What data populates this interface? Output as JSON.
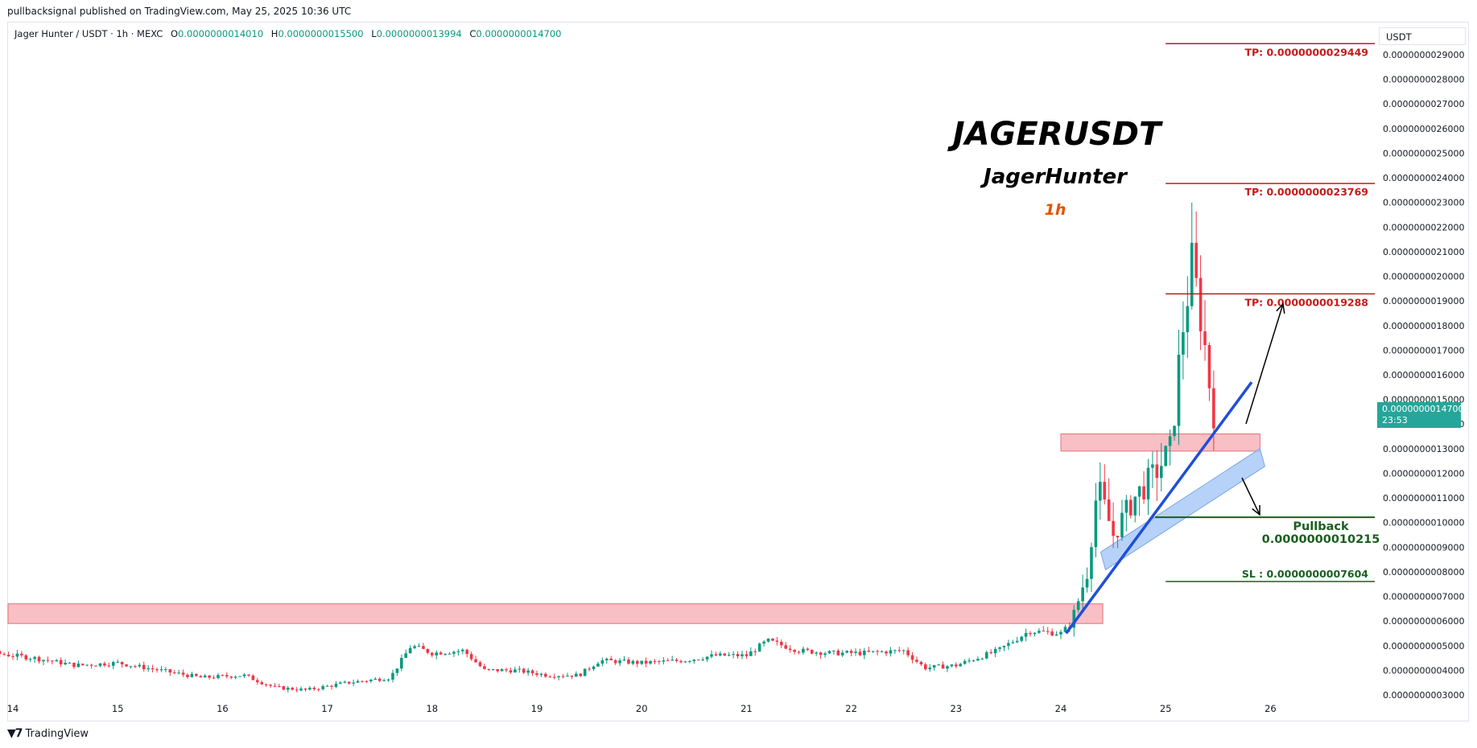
{
  "header": {
    "published": "pullbacksignal published on TradingView.com, May 25, 2025 10:36 UTC"
  },
  "legend": {
    "symbol": "Jager Hunter / USDT · 1h · MEXC",
    "open_label": "O",
    "open": "0.0000000014010",
    "high_label": "H",
    "high": "0.0000000015500",
    "low_label": "L",
    "low": "0.0000000013994",
    "close_label": "C",
    "close": "0.0000000014700"
  },
  "price_scale": {
    "unit": "USDT"
  },
  "last_price": {
    "value": "0.0000000014700",
    "countdown": "23:53"
  },
  "footer": {
    "brand": "TradingView"
  },
  "colors": {
    "up": "#089981",
    "down": "#f23645",
    "trend": "#1f4fd8",
    "zone": "#f7b8bf",
    "channel": "#9ec3f5",
    "tp": "#c41a1a",
    "sl": "#1b5e20"
  },
  "chart_data": {
    "type": "candlestick",
    "title": "JAGERUSDT",
    "subtitle": "JagerHunter",
    "timeframe": "1h",
    "ylim": [
      3e-10,
      2.9e-09
    ],
    "y_ticks": [
      "0.0000000003000",
      "0.0000000004000",
      "0.0000000005000",
      "0.0000000006000",
      "0.0000000007000",
      "0.0000000008000",
      "0.0000000009000",
      "0.0000000010000",
      "0.0000000011000",
      "0.0000000012000",
      "0.0000000013000",
      "0.0000000014000",
      "0.0000000015000",
      "0.0000000016000",
      "0.0000000017000",
      "0.0000000018000",
      "0.0000000019000",
      "0.0000000020000",
      "0.0000000021000",
      "0.0000000022000",
      "0.0000000023000",
      "0.0000000024000",
      "0.0000000025000",
      "0.0000000026000",
      "0.0000000027000",
      "0.0000000028000",
      "0.0000000029000"
    ],
    "x_ticks": [
      "14",
      "15",
      "16",
      "17",
      "18",
      "19",
      "20",
      "21",
      "22",
      "23",
      "24",
      "25",
      "26"
    ],
    "price_path": [
      [
        13.0,
        6e-10
      ],
      [
        13.4,
        5.5e-10
      ],
      [
        13.8,
        4.7e-10
      ],
      [
        14.2,
        4.5e-10
      ],
      [
        14.6,
        4.2e-10
      ],
      [
        15.0,
        4.3e-10
      ],
      [
        15.4,
        4e-10
      ],
      [
        15.8,
        3.7e-10
      ],
      [
        16.2,
        3.8e-10
      ],
      [
        16.5,
        3.3e-10
      ],
      [
        16.8,
        3.2e-10
      ],
      [
        17.2,
        3.5e-10
      ],
      [
        17.6,
        3.7e-10
      ],
      [
        17.8,
        5e-10
      ],
      [
        18.0,
        4.7e-10
      ],
      [
        18.3,
        4.8e-10
      ],
      [
        18.5,
        4e-10
      ],
      [
        18.8,
        4e-10
      ],
      [
        19.1,
        3.8e-10
      ],
      [
        19.4,
        3.8e-10
      ],
      [
        19.6,
        4.4e-10
      ],
      [
        20.0,
        4.3e-10
      ],
      [
        20.4,
        4.4e-10
      ],
      [
        20.7,
        4.6e-10
      ],
      [
        21.0,
        4.6e-10
      ],
      [
        21.2,
        5.2e-10
      ],
      [
        21.5,
        4.8e-10
      ],
      [
        21.8,
        4.7e-10
      ],
      [
        22.1,
        4.7e-10
      ],
      [
        22.5,
        4.8e-10
      ],
      [
        22.7,
        4.1e-10
      ],
      [
        23.0,
        4.2e-10
      ],
      [
        23.4,
        4.8e-10
      ],
      [
        23.7,
        5.6e-10
      ],
      [
        24.0,
        5.5e-10
      ],
      [
        24.1,
        5.9e-10
      ],
      [
        24.25,
        8e-10
      ],
      [
        24.35,
        1.15e-09
      ],
      [
        24.5,
        9.5e-10
      ],
      [
        24.7,
        1.1e-09
      ],
      [
        24.9,
        1.2e-09
      ],
      [
        25.05,
        1.3e-09
      ],
      [
        25.15,
        1.75e-09
      ],
      [
        25.25,
        2.05e-09
      ],
      [
        25.35,
        1.8e-09
      ],
      [
        25.45,
        1.45e-09
      ],
      [
        25.5,
        1.47e-09
      ]
    ],
    "annotations": [
      {
        "label": "TP: 0.0000000029449",
        "price": 2.9449e-09
      },
      {
        "label": "TP: 0.0000000023769",
        "price": 2.3769e-09
      },
      {
        "label": "TP: 0.0000000019288",
        "price": 1.9288e-09
      },
      {
        "label": "Pullback",
        "value": "0.0000000010215",
        "price": 1.0215e-09
      },
      {
        "label": "SL : 0.0000000007604",
        "price": 7.604e-10
      }
    ],
    "zones": [
      {
        "name": "resistance-zone-low",
        "from": 5.9e-10,
        "to": 6.7e-10
      },
      {
        "name": "resistance-zone-high",
        "from": 1.29e-09,
        "to": 1.36e-09
      }
    ],
    "grid": false,
    "legend": "none"
  }
}
